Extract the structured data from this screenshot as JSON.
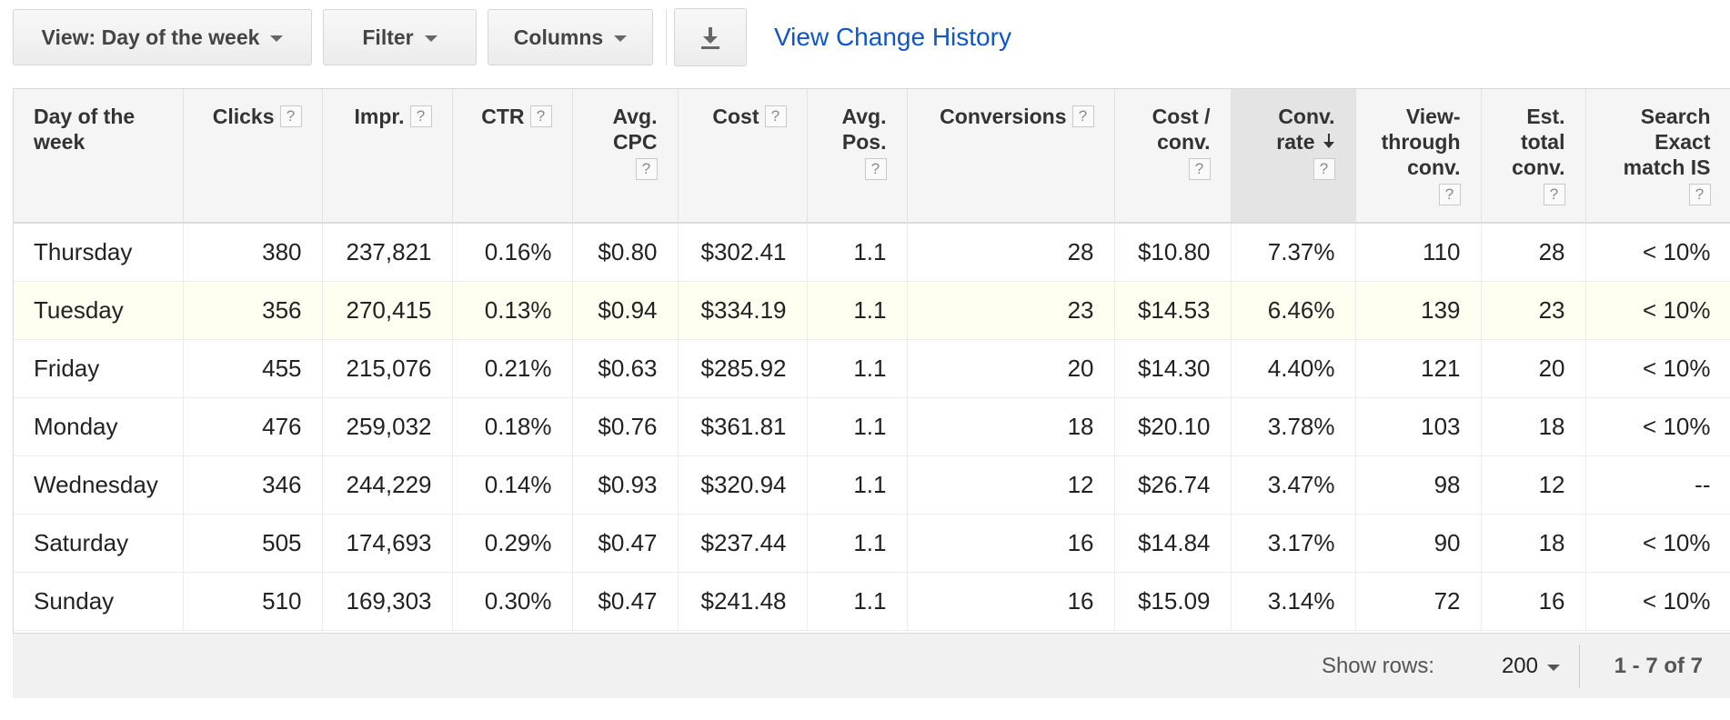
{
  "toolbar": {
    "view_label": "View: Day of the week",
    "filter_label": "Filter",
    "columns_label": "Columns",
    "download_icon": "download-icon",
    "history_link": "View Change History"
  },
  "table": {
    "headers": [
      {
        "label": "Day of the week",
        "help": false
      },
      {
        "label": "Clicks",
        "help": true
      },
      {
        "label": "Impr.",
        "help": true
      },
      {
        "label": "CTR",
        "help": true
      },
      {
        "label": "Avg. CPC",
        "help": true
      },
      {
        "label": "Cost",
        "help": true
      },
      {
        "label": "Avg. Pos.",
        "help": true
      },
      {
        "label": "Conversions",
        "help": true
      },
      {
        "label": "Cost / conv.",
        "help": true
      },
      {
        "label": "Conv. rate",
        "help": true,
        "sorted": "descending"
      },
      {
        "label": "View-through conv.",
        "help": true
      },
      {
        "label": "Est. total conv.",
        "help": true
      },
      {
        "label": "Search Exact match IS",
        "help": true
      }
    ],
    "help_glyph": "?",
    "rows": [
      [
        "Thursday",
        "380",
        "237,821",
        "0.16%",
        "$0.80",
        "$302.41",
        "1.1",
        "28",
        "$10.80",
        "7.37%",
        "110",
        "28",
        "< 10%"
      ],
      [
        "Tuesday",
        "356",
        "270,415",
        "0.13%",
        "$0.94",
        "$334.19",
        "1.1",
        "23",
        "$14.53",
        "6.46%",
        "139",
        "23",
        "< 10%"
      ],
      [
        "Friday",
        "455",
        "215,076",
        "0.21%",
        "$0.63",
        "$285.92",
        "1.1",
        "20",
        "$14.30",
        "4.40%",
        "121",
        "20",
        "< 10%"
      ],
      [
        "Monday",
        "476",
        "259,032",
        "0.18%",
        "$0.76",
        "$361.81",
        "1.1",
        "18",
        "$20.10",
        "3.78%",
        "103",
        "18",
        "< 10%"
      ],
      [
        "Wednesday",
        "346",
        "244,229",
        "0.14%",
        "$0.93",
        "$320.94",
        "1.1",
        "12",
        "$26.74",
        "3.47%",
        "98",
        "12",
        "--"
      ],
      [
        "Saturday",
        "505",
        "174,693",
        "0.29%",
        "$0.47",
        "$237.44",
        "1.1",
        "16",
        "$14.84",
        "3.17%",
        "90",
        "18",
        "< 10%"
      ],
      [
        "Sunday",
        "510",
        "169,303",
        "0.30%",
        "$0.47",
        "$241.48",
        "1.1",
        "16",
        "$15.09",
        "3.14%",
        "72",
        "16",
        "< 10%"
      ]
    ],
    "highlight_color": "#fefff0"
  },
  "footer": {
    "show_rows_label": "Show rows:",
    "rows_value": "200",
    "pagination": "1 - 7 of 7"
  },
  "colors": {
    "link": "#1155cc",
    "header_bg": "#f5f5f5",
    "sorted_header_bg": "#e4e4e4",
    "footer_bg": "#f1f1f1"
  }
}
